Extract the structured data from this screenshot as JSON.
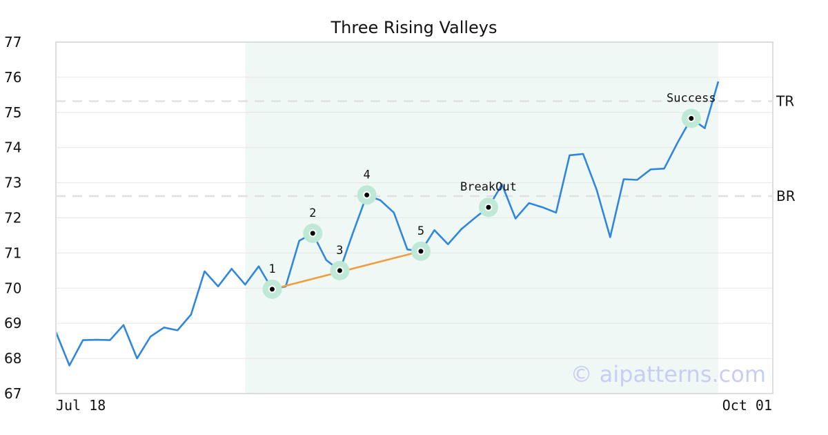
{
  "chart_data": {
    "type": "line",
    "title": "Three Rising Valleys",
    "xlabel": "",
    "ylabel": "",
    "ylim": [
      67,
      77
    ],
    "yticks": [
      67,
      68,
      69,
      70,
      71,
      72,
      73,
      74,
      75,
      76,
      77
    ],
    "x_labels": {
      "start": "Jul 18",
      "end": "Oct 01"
    },
    "grid": "horizontal",
    "colors": {
      "price": "#2e86de",
      "valley_line": "#f39c3d",
      "highlight_region": "#eff8f4",
      "marker_halo": "#bfe9d6",
      "reference": "#e0e0e0",
      "frame": "#dddddd",
      "watermark": "#c9cdf6"
    },
    "series": [
      {
        "values": [
          68.75,
          67.8,
          68.52,
          68.53,
          68.52,
          68.95,
          68.0,
          68.62,
          68.88,
          68.8,
          69.25,
          70.48,
          70.05,
          70.55,
          70.1,
          70.62,
          69.97,
          70.05,
          71.35,
          71.56,
          70.8,
          70.5,
          71.6,
          72.65,
          72.5,
          72.15,
          71.1,
          71.05,
          71.65,
          71.25,
          71.68,
          72.0,
          72.3,
          72.95,
          71.98,
          72.42,
          72.3,
          72.15,
          73.78,
          73.82,
          72.8,
          71.45,
          73.1,
          73.08,
          73.38,
          73.4,
          74.15,
          74.83,
          74.55,
          75.88
        ]
      }
    ],
    "highlight_region": {
      "start_index": 14,
      "end_index": 49
    },
    "reference_lines": [
      {
        "label": "TR",
        "value": 75.32
      },
      {
        "label": "BR",
        "value": 72.62
      }
    ],
    "valley_line": {
      "from_index": 16,
      "to_index": 27
    },
    "points": [
      {
        "label": "1",
        "index": 16,
        "value": 69.97
      },
      {
        "label": "2",
        "index": 19,
        "value": 71.56
      },
      {
        "label": "3",
        "index": 21,
        "value": 70.5
      },
      {
        "label": "4",
        "index": 23,
        "value": 72.65
      },
      {
        "label": "5",
        "index": 27,
        "value": 71.05
      },
      {
        "label": "BreakOut",
        "index": 32,
        "value": 72.3
      },
      {
        "label": "Success",
        "index": 47,
        "value": 74.83
      }
    ],
    "watermark": "© aipatterns.com"
  }
}
